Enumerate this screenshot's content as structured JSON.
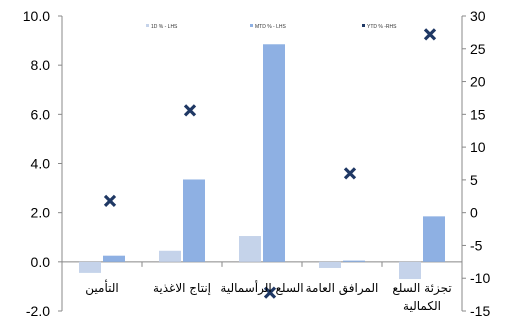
{
  "chart_data": {
    "type": "bar",
    "categories": [
      "التأمين",
      "إنتاج الأغذية",
      "السلع الرأسمالية",
      "المرافق العامة",
      "تجزئة السلع الكمالية"
    ],
    "category_label_lines": [
      [
        "التأمين"
      ],
      [
        "إنتاج الاغذية"
      ],
      [
        "السلع الرأسمالية"
      ],
      [
        "المرافق العامة"
      ],
      [
        "تجزئة السلع",
        "الكمالية"
      ]
    ],
    "series": [
      {
        "name": "1D % - LHS",
        "axis": "left",
        "marker": "bar",
        "color": "#c5d3ea",
        "values": [
          -0.45,
          0.45,
          1.05,
          -0.25,
          -0.7
        ]
      },
      {
        "name": "MTD % - LHS",
        "axis": "left",
        "marker": "bar",
        "color": "#8eb0e3",
        "values": [
          0.25,
          3.35,
          8.85,
          0.05,
          1.85
        ]
      },
      {
        "name": "YTD % -RHS",
        "axis": "right",
        "marker": "x",
        "color": "#1f3864",
        "values": [
          1.8,
          15.6,
          -12.2,
          6.0,
          27.2
        ]
      }
    ],
    "left_axis": {
      "min": -2,
      "max": 10,
      "step": 2,
      "ticks": [
        "-2.0",
        "0.0",
        "2.0",
        "4.0",
        "6.0",
        "8.0",
        "10.0"
      ]
    },
    "right_axis": {
      "min": -15,
      "max": 30,
      "step": 5,
      "ticks": [
        "-15",
        "-10",
        "-5",
        "0",
        "5",
        "10",
        "15",
        "20",
        "25",
        "30"
      ]
    },
    "legend_position": "top-center",
    "grid": false
  }
}
